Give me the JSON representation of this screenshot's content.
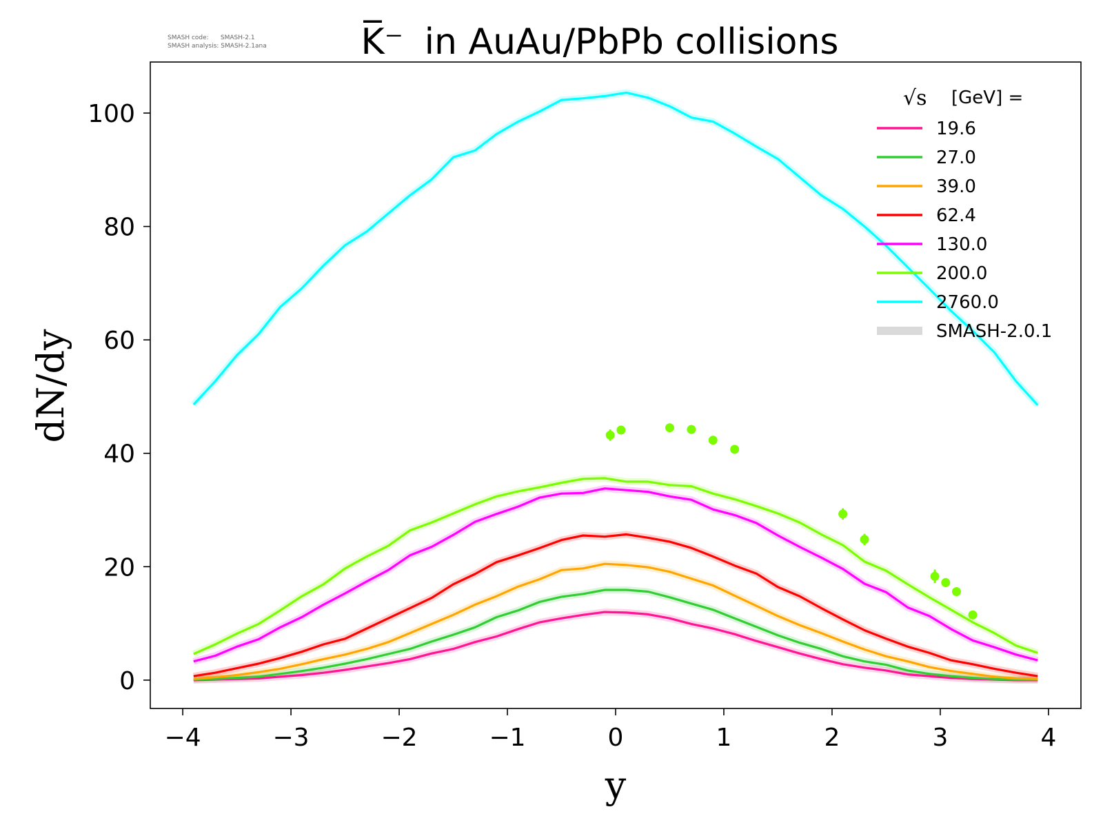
{
  "meta": {
    "code_line": "SMASH code:      SMASH-2.1",
    "analysis_line": "SMASH analysis: SMASH-2.1ana"
  },
  "chart_data": {
    "type": "line",
    "title_symbol": "K̅⁻",
    "title": "in AuAu/PbPb collisions",
    "xlabel": "y",
    "ylabel": "dN/dy",
    "xlim": [
      -4.3,
      4.3
    ],
    "ylim": [
      -5,
      109
    ],
    "xticks": [
      -4,
      -3,
      -2,
      -1,
      0,
      1,
      2,
      3,
      4
    ],
    "xtick_labels": [
      "−4",
      "−3",
      "−2",
      "−1",
      "0",
      "1",
      "2",
      "3",
      "4"
    ],
    "yticks": [
      0,
      20,
      40,
      60,
      80,
      100
    ],
    "ytick_labels": [
      "0",
      "20",
      "40",
      "60",
      "80",
      "100"
    ],
    "legend": {
      "position": "top-right",
      "title_sqrt": "√s",
      "title_rest": "[GeV] =",
      "band_label": "SMASH-2.0.1",
      "band_color": "#d9d9d9"
    },
    "x": [
      -3.9,
      -3.7,
      -3.5,
      -3.3,
      -3.1,
      -2.9,
      -2.7,
      -2.5,
      -2.3,
      -2.1,
      -1.9,
      -1.7,
      -1.5,
      -1.3,
      -1.1,
      -0.9,
      -0.7,
      -0.5,
      -0.3,
      -0.1,
      0.1,
      0.3,
      0.5,
      0.7,
      0.9,
      1.1,
      1.3,
      1.5,
      1.7,
      1.9,
      2.1,
      2.3,
      2.5,
      2.7,
      2.9,
      3.1,
      3.3,
      3.5,
      3.7,
      3.9
    ],
    "series": [
      {
        "name": "19.6",
        "color": "#ff1493",
        "values": [
          0.0,
          0.1,
          0.2,
          0.3,
          0.6,
          0.9,
          1.3,
          1.8,
          2.4,
          3.0,
          3.7,
          4.7,
          5.5,
          6.7,
          7.7,
          9.0,
          10.2,
          10.9,
          11.5,
          12.0,
          11.9,
          11.6,
          10.9,
          9.9,
          9.1,
          8.1,
          6.9,
          5.8,
          4.7,
          3.7,
          2.8,
          2.2,
          1.7,
          1.0,
          0.7,
          0.4,
          0.2,
          0.1,
          0.0,
          0.0
        ]
      },
      {
        "name": "27.0",
        "color": "#32cd32",
        "values": [
          0.1,
          0.2,
          0.4,
          0.6,
          1.1,
          1.6,
          2.2,
          2.9,
          3.7,
          4.6,
          5.5,
          6.8,
          8.0,
          9.3,
          11.1,
          12.3,
          13.8,
          14.7,
          15.2,
          15.9,
          15.9,
          15.6,
          14.6,
          13.5,
          12.4,
          10.9,
          9.4,
          7.9,
          6.6,
          5.5,
          4.2,
          3.3,
          2.7,
          1.7,
          1.1,
          0.7,
          0.4,
          0.2,
          0.1,
          0.1
        ]
      },
      {
        "name": "39.0",
        "color": "#ffa500",
        "values": [
          0.2,
          0.5,
          0.9,
          1.4,
          2.0,
          2.8,
          3.7,
          4.5,
          5.5,
          6.7,
          8.3,
          9.9,
          11.5,
          13.3,
          14.8,
          16.5,
          17.8,
          19.4,
          19.7,
          20.5,
          20.3,
          19.9,
          19.1,
          17.9,
          16.7,
          14.9,
          13.1,
          11.3,
          9.7,
          8.3,
          6.8,
          5.4,
          4.2,
          3.3,
          2.3,
          1.6,
          1.1,
          0.6,
          0.3,
          0.2
        ]
      },
      {
        "name": "62.4",
        "color": "#ff0000",
        "values": [
          0.7,
          1.3,
          2.1,
          2.9,
          3.9,
          5.0,
          6.3,
          7.3,
          9.1,
          10.9,
          12.7,
          14.5,
          16.9,
          18.7,
          20.8,
          22.0,
          23.3,
          24.7,
          25.5,
          25.3,
          25.7,
          25.1,
          24.4,
          23.3,
          21.8,
          20.2,
          18.8,
          16.4,
          14.8,
          12.7,
          10.7,
          8.8,
          7.3,
          5.9,
          4.8,
          3.5,
          2.8,
          2.0,
          1.3,
          0.7
        ]
      },
      {
        "name": "130.0",
        "color": "#ff00ff",
        "values": [
          3.3,
          4.3,
          5.9,
          7.2,
          9.3,
          11.1,
          13.3,
          15.3,
          17.4,
          19.4,
          22.0,
          23.5,
          25.6,
          27.9,
          29.3,
          30.6,
          32.2,
          32.9,
          33.0,
          33.8,
          33.5,
          33.2,
          32.4,
          31.8,
          30.1,
          29.1,
          27.7,
          25.5,
          23.5,
          21.6,
          19.6,
          17.0,
          15.5,
          12.8,
          11.3,
          9.0,
          7.0,
          5.8,
          4.5,
          3.5
        ]
      },
      {
        "name": "200.0",
        "color": "#7cfc00",
        "values": [
          4.6,
          6.3,
          8.2,
          9.9,
          12.3,
          14.8,
          16.9,
          19.7,
          21.8,
          23.7,
          26.4,
          27.8,
          29.4,
          31.0,
          32.4,
          33.3,
          34.0,
          34.8,
          35.5,
          35.6,
          35.0,
          35.0,
          34.4,
          34.2,
          32.9,
          31.9,
          30.7,
          29.4,
          27.8,
          25.7,
          23.8,
          20.9,
          19.3,
          16.9,
          14.6,
          12.4,
          10.2,
          8.3,
          6.1,
          4.8
        ]
      },
      {
        "name": "2760.0",
        "color": "#00ffff",
        "values": [
          48.6,
          52.7,
          57.3,
          61.0,
          65.8,
          69.1,
          73.1,
          76.7,
          79.1,
          82.3,
          85.5,
          88.3,
          92.2,
          93.4,
          96.3,
          98.5,
          100.3,
          102.3,
          102.6,
          103.0,
          103.6,
          102.7,
          101.2,
          99.2,
          98.5,
          96.4,
          94.1,
          91.9,
          88.7,
          85.5,
          83.1,
          80.0,
          76.6,
          72.8,
          69.0,
          65.1,
          61.6,
          57.8,
          52.7,
          48.5
        ]
      }
    ],
    "measurements": {
      "color": "#7cfc00",
      "x": [
        -0.05,
        0.05,
        0.5,
        0.7,
        0.9,
        1.1,
        2.1,
        2.3,
        2.95,
        3.05,
        3.15,
        3.3
      ],
      "y": [
        43.2,
        44.1,
        44.5,
        44.2,
        42.3,
        40.7,
        29.3,
        24.8,
        18.3,
        17.2,
        15.6,
        11.5
      ],
      "err": [
        1.0,
        0.6,
        0.5,
        0.5,
        0.6,
        0.6,
        1.0,
        1.0,
        1.2,
        0.8,
        0.6,
        0.5
      ]
    }
  }
}
